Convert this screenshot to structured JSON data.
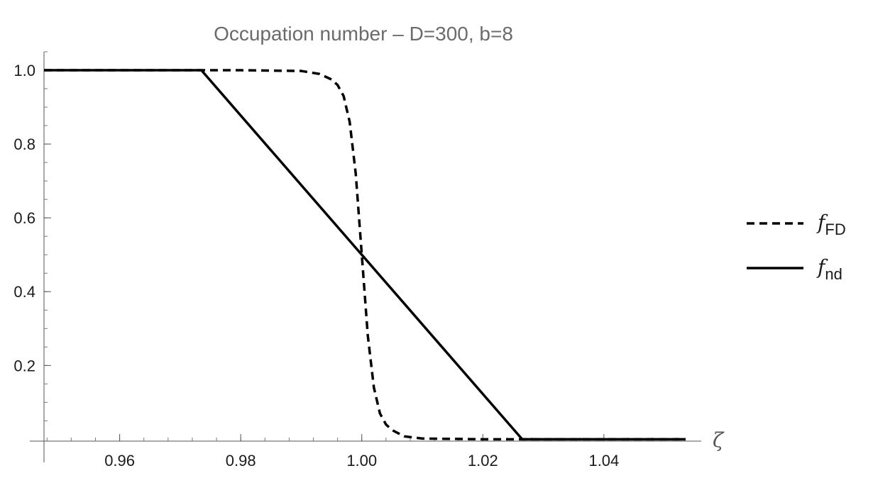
{
  "chart_data": {
    "type": "line",
    "title": "Occupation number – D=300, b=8",
    "xlabel": "ζ",
    "ylabel": "",
    "xlim": [
      0.9475,
      1.0535
    ],
    "ylim": [
      -0.005,
      1.05
    ],
    "x_ticks": [
      0.96,
      0.98,
      1.0,
      1.02,
      1.04
    ],
    "x_tick_labels": [
      "0.96",
      "0.98",
      "1.00",
      "1.02",
      "1.04"
    ],
    "y_ticks": [
      0.2,
      0.4,
      0.6,
      0.8,
      1.0
    ],
    "y_tick_labels": [
      "0.2",
      "0.4",
      "0.6",
      "0.8",
      "1.0"
    ],
    "grid": false,
    "legend_placement": "right",
    "series": [
      {
        "name": "f_FD",
        "legend_main": "f",
        "legend_sub": "FD",
        "color": "#000000",
        "dash": "dashed",
        "x": [
          0.9475,
          0.97,
          0.98,
          0.99,
          0.993,
          0.995,
          0.996,
          0.997,
          0.998,
          0.999,
          1.0,
          1.001,
          1.002,
          1.003,
          1.004,
          1.005,
          1.007,
          1.01,
          1.02,
          1.0535
        ],
        "y": [
          1.0,
          1.0,
          1.0,
          0.998,
          0.99,
          0.975,
          0.96,
          0.93,
          0.86,
          0.72,
          0.5,
          0.28,
          0.14,
          0.07,
          0.04,
          0.025,
          0.008,
          0.002,
          0.0,
          0.0
        ]
      },
      {
        "name": "f_nd",
        "legend_main": "f",
        "legend_sub": "nd",
        "color": "#000000",
        "dash": "solid",
        "x": [
          0.9475,
          0.9735,
          1.0,
          1.0265,
          1.0535
        ],
        "y": [
          1.0,
          1.0,
          0.5,
          0.0,
          0.0
        ]
      }
    ]
  }
}
